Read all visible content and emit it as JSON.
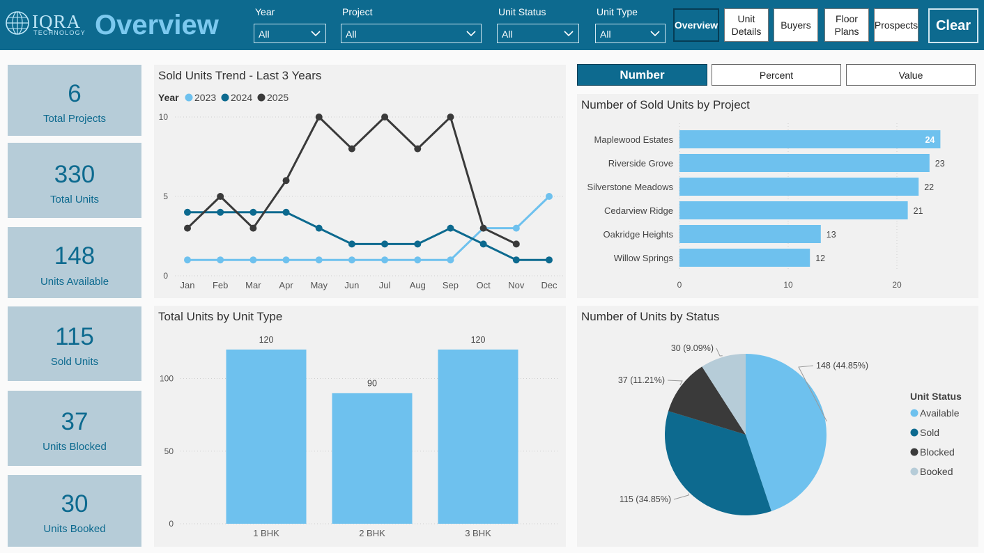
{
  "header": {
    "logo_text": "IQRA",
    "logo_sub": "TECHNOLOGY",
    "title": "Overview",
    "filters": [
      {
        "label": "Year",
        "value": "All"
      },
      {
        "label": "Project",
        "value": "All"
      },
      {
        "label": "Unit Status",
        "value": "All"
      },
      {
        "label": "Unit Type",
        "value": "All"
      }
    ],
    "nav": [
      {
        "label": "Overview",
        "active": true
      },
      {
        "label": "Unit\nDetails",
        "active": false
      },
      {
        "label": "Buyers",
        "active": false
      },
      {
        "label": "Floor\nPlans",
        "active": false
      },
      {
        "label": "Prospects",
        "active": false
      }
    ],
    "clear_label": "Clear",
    "colors": {
      "header_bg": "#0d6a8f",
      "title": "#7cc9ef"
    }
  },
  "kpis": [
    {
      "value": "6",
      "label": "Total Projects"
    },
    {
      "value": "330",
      "label": "Total Units"
    },
    {
      "value": "148",
      "label": "Units Available"
    },
    {
      "value": "115",
      "label": "Sold Units"
    },
    {
      "value": "37",
      "label": "Units Blocked"
    },
    {
      "value": "30",
      "label": "Units Booked"
    }
  ],
  "measure_toggle": [
    {
      "label": "Number",
      "active": true
    },
    {
      "label": "Percent",
      "active": false
    },
    {
      "label": "Value",
      "active": false
    }
  ],
  "chart_data": [
    {
      "id": "trend",
      "type": "line",
      "title": "Sold Units Trend - Last 3 Years",
      "legend_title": "Year",
      "categories": [
        "Jan",
        "Feb",
        "Mar",
        "Apr",
        "May",
        "Jun",
        "Jul",
        "Aug",
        "Sep",
        "Oct",
        "Nov",
        "Dec"
      ],
      "series": [
        {
          "name": "2023",
          "color": "#6ec1ee",
          "values": [
            1,
            1,
            1,
            1,
            1,
            1,
            1,
            1,
            1,
            3,
            3,
            5
          ]
        },
        {
          "name": "2024",
          "color": "#0d6a8f",
          "values": [
            4,
            4,
            4,
            4,
            3,
            2,
            2,
            2,
            3,
            2,
            1,
            1
          ]
        },
        {
          "name": "2025",
          "color": "#3a3a3a",
          "values": [
            3,
            5,
            3,
            6,
            10,
            8,
            10,
            8,
            10,
            3,
            2,
            null
          ]
        }
      ],
      "ylim": [
        0,
        10
      ],
      "yticks": [
        0,
        5,
        10
      ],
      "grid": true,
      "legend_position": "top-left"
    },
    {
      "id": "byproject",
      "type": "bar",
      "orientation": "horizontal",
      "title": "Number of Sold Units by Project",
      "categories": [
        "Maplewood Estates",
        "Riverside Grove",
        "Silverstone Meadows",
        "Cedarview Ridge",
        "Oakridge Heights",
        "Willow Springs"
      ],
      "values": [
        24,
        23,
        22,
        21,
        13,
        12
      ],
      "color": "#6ec1ee",
      "xlim": [
        0,
        25
      ],
      "xticks": [
        0,
        10,
        20
      ],
      "grid": true
    },
    {
      "id": "byunittype",
      "type": "bar",
      "title": "Total Units by Unit Type",
      "categories": [
        "1 BHK",
        "2 BHK",
        "3 BHK"
      ],
      "values": [
        120,
        90,
        120
      ],
      "color": "#6ec1ee",
      "ylim": [
        0,
        130
      ],
      "yticks": [
        0,
        50,
        100
      ],
      "grid": true
    },
    {
      "id": "bystatus",
      "type": "pie",
      "title": "Number of Units by Status",
      "legend_title": "Unit Status",
      "legend_position": "right",
      "slices": [
        {
          "name": "Available",
          "value": 148,
          "label": "148 (44.85%)",
          "color": "#6ec1ee"
        },
        {
          "name": "Sold",
          "value": 115,
          "label": "115 (34.85%)",
          "color": "#0d6a8f"
        },
        {
          "name": "Blocked",
          "value": 37,
          "label": "37 (11.21%)",
          "color": "#3a3a3a"
        },
        {
          "name": "Booked",
          "value": 30,
          "label": "30 (9.09%)",
          "color": "#b6ccd8"
        }
      ]
    }
  ]
}
